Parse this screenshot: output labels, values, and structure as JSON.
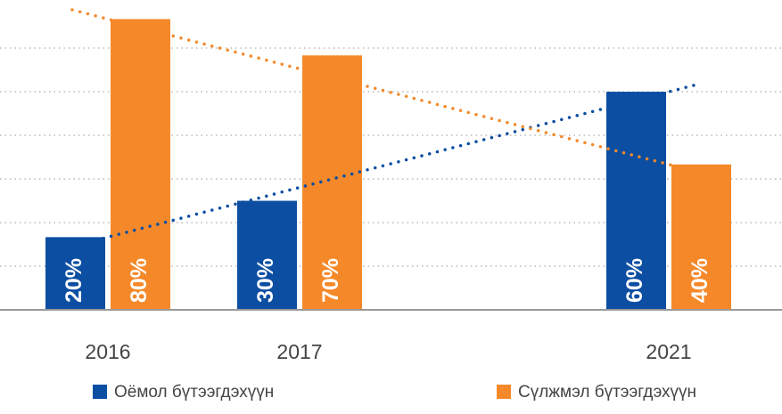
{
  "chart_data": {
    "type": "bar",
    "categories": [
      "2016",
      "2017",
      "2021"
    ],
    "series": [
      {
        "name": "Оёмол бүтээгдэхүүн",
        "color": "#0b4ea2",
        "values": [
          20,
          30,
          60
        ],
        "value_labels": [
          "20%",
          "30%",
          "60%"
        ]
      },
      {
        "name": "Сүлжмэл бүтээгдэхүүн",
        "color": "#f5892a",
        "values": [
          80,
          70,
          40
        ],
        "value_labels": [
          "80%",
          "70%",
          "40%"
        ]
      }
    ],
    "ylim": [
      0,
      85
    ],
    "grid": true,
    "trend_lines": true
  }
}
